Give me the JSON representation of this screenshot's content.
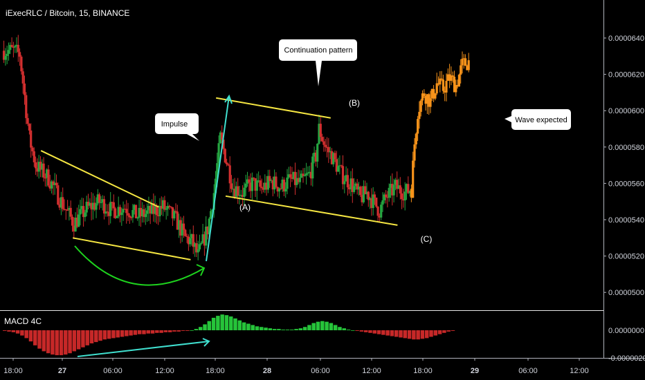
{
  "header": {
    "title": "iExecRLC / Bitcoin, 15, BINANCE"
  },
  "chart_data": {
    "type": "candlestick",
    "price_axis": {
      "ticks": [
        "0.0000640",
        "0.0000620",
        "0.0000600",
        "0.0000580",
        "0.0000560",
        "0.0000540",
        "0.0000520",
        "0.0000500"
      ],
      "tick_values": [
        6.4e-05,
        6.2e-05,
        6e-05,
        5.8e-05,
        5.6e-05,
        5.4e-05,
        5.2e-05,
        5e-05
      ],
      "range": [
        4.94e-05,
        6.6e-05
      ]
    },
    "time_axis": {
      "labels": [
        "18:00",
        "27",
        "06:00",
        "12:00",
        "18:00",
        "28",
        "06:00",
        "12:00",
        "18:00",
        "29",
        "06:00",
        "12:00"
      ],
      "bold": [
        false,
        true,
        false,
        false,
        false,
        true,
        false,
        false,
        false,
        true,
        false,
        false
      ]
    },
    "colors": {
      "up": "#26a641",
      "down": "#d32f2f",
      "projection": "#f7931a",
      "trend": "#f5e642",
      "arrow": "#40e0d0",
      "curve": "#1ed31e"
    },
    "price_path": [
      [
        6.33e-05,
        0
      ],
      [
        6.33e-05,
        3
      ],
      [
        6.31e-05,
        5
      ],
      [
        5.85e-05,
        8
      ],
      [
        5.7e-05,
        10
      ],
      [
        5.63e-05,
        14
      ],
      [
        5.5e-05,
        18
      ],
      [
        5.38e-05,
        22
      ],
      [
        5.46e-05,
        26
      ],
      [
        5.5e-05,
        30
      ],
      [
        5.45e-05,
        34
      ],
      [
        5.47e-05,
        38
      ],
      [
        5.42e-05,
        42
      ],
      [
        5.44e-05,
        46
      ],
      [
        5.47e-05,
        50
      ],
      [
        5.4e-05,
        54
      ],
      [
        5.3e-05,
        57
      ],
      [
        5.28e-05,
        59
      ],
      [
        5.2e-05,
        61
      ],
      [
        5.35e-05,
        64
      ],
      [
        5.55e-05,
        66
      ],
      [
        5.85e-05,
        68
      ],
      [
        5.72e-05,
        70
      ],
      [
        5.58e-05,
        72
      ],
      [
        5.55e-05,
        75
      ],
      [
        5.6e-05,
        78
      ],
      [
        5.57e-05,
        81
      ],
      [
        5.61e-05,
        84
      ],
      [
        5.58e-05,
        87
      ],
      [
        5.62e-05,
        90
      ],
      [
        5.6e-05,
        93
      ],
      [
        5.65e-05,
        96
      ],
      [
        5.75e-05,
        98
      ],
      [
        5.9e-05,
        99
      ],
      [
        5.8e-05,
        101
      ],
      [
        5.75e-05,
        103
      ],
      [
        5.65e-05,
        106
      ],
      [
        5.6e-05,
        109
      ],
      [
        5.52e-05,
        112
      ],
      [
        5.55e-05,
        114
      ],
      [
        5.5e-05,
        116
      ],
      [
        5.45e-05,
        118
      ],
      [
        5.52e-05,
        120
      ],
      [
        5.58e-05,
        123
      ],
      [
        5.55e-05,
        126
      ],
      [
        5.57e-05,
        128
      ]
    ],
    "projection_path": [
      [
        5.57e-05,
        128
      ],
      [
        5.82e-05,
        129
      ],
      [
        6e-05,
        130
      ],
      [
        6.1e-05,
        132
      ],
      [
        6.05e-05,
        134
      ],
      [
        6.15e-05,
        136
      ],
      [
        6.12e-05,
        138
      ],
      [
        6.18e-05,
        140
      ],
      [
        6.14e-05,
        142
      ],
      [
        6.25e-05,
        144
      ],
      [
        6.27e-05,
        146
      ]
    ],
    "trendlines": [
      {
        "from": [
          5.78e-05,
          12
        ],
        "to": [
          5.47e-05,
          49
        ]
      },
      {
        "from": [
          5.3e-05,
          22
        ],
        "to": [
          5.18e-05,
          59
        ]
      },
      {
        "from": [
          6.07e-05,
          67
        ],
        "to": [
          5.96e-05,
          103
        ]
      },
      {
        "from": [
          5.53e-05,
          70
        ],
        "to": [
          5.37e-05,
          124
        ]
      }
    ],
    "annotations": {
      "impulse": "Impulse",
      "continuation": "Continuation pattern",
      "wave_expected": "Wave expected",
      "wave_a": "(A)",
      "wave_b": "(B)",
      "wave_c": "(C)"
    },
    "macd": {
      "label": "MACD 4C",
      "ticks": [
        "0.0000000",
        "-0.0000020"
      ],
      "histogram": [
        -1,
        -2,
        -3,
        -5,
        -8,
        -12,
        -17,
        -23,
        -28,
        -32,
        -35,
        -37,
        -38,
        -38,
        -37,
        -35,
        -32,
        -29,
        -26,
        -23,
        -20,
        -18,
        -16,
        -14,
        -13,
        -12,
        -11,
        -10,
        -9,
        -8,
        -7,
        -6,
        -6,
        -5,
        -5,
        -4,
        -4,
        -3,
        -3,
        -2,
        -2,
        -1,
        -1,
        0,
        2,
        5,
        9,
        14,
        19,
        22,
        24,
        23,
        21,
        18,
        15,
        12,
        10,
        8,
        6,
        5,
        4,
        3,
        2,
        2,
        1,
        1,
        1,
        2,
        3,
        5,
        8,
        11,
        13,
        14,
        13,
        11,
        8,
        5,
        3,
        1,
        0,
        -1,
        -2,
        -3,
        -4,
        -5,
        -6,
        -7,
        -8,
        -9,
        -10,
        -11,
        -12,
        -13,
        -14,
        -14,
        -13,
        -12,
        -10,
        -8,
        -6,
        -4,
        -2,
        -1
      ]
    }
  }
}
